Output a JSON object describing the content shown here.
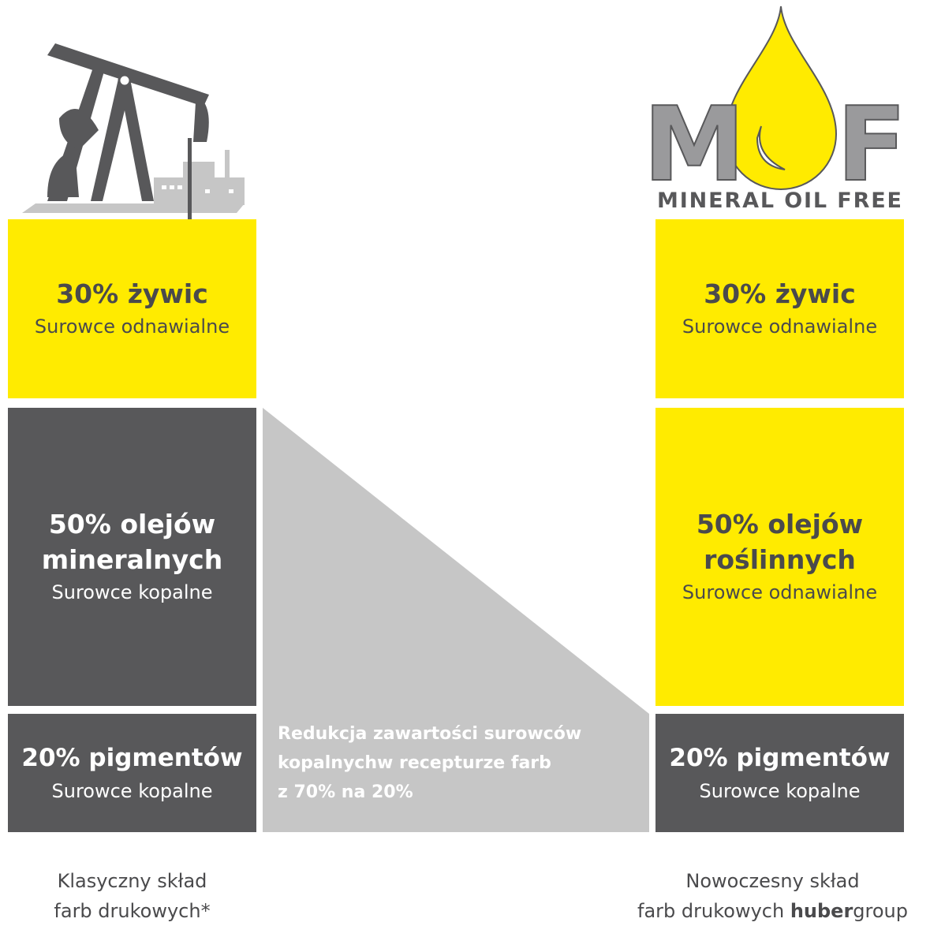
{
  "left": {
    "blocks": [
      {
        "title": [
          "30% żywic"
        ],
        "subtitle": "Surowce odnawialne"
      },
      {
        "title": [
          "50% olejów",
          "mineralnych"
        ],
        "subtitle": "Surowce kopalne"
      },
      {
        "title": [
          "20% pigmentów"
        ],
        "subtitle": "Surowce kopalne"
      }
    ],
    "caption": [
      "Klasyczny skład",
      "farb drukowych*"
    ]
  },
  "right": {
    "logo": {
      "letters": [
        "M",
        "F"
      ],
      "tagline": "MINERAL OIL FREE"
    },
    "blocks": [
      {
        "title": [
          "30% żywic"
        ],
        "subtitle": "Surowce odnawialne"
      },
      {
        "title": [
          "50% olejów",
          "roślinnych"
        ],
        "subtitle": "Surowce odnawialne"
      },
      {
        "title": [
          "20% pigmentów"
        ],
        "subtitle": "Surowce kopalne"
      }
    ],
    "caption": {
      "line1": "Nowoczesny skład",
      "line2": [
        "farb drukowych ",
        "huber",
        "group"
      ]
    }
  },
  "reduction": [
    "Redukcja zawartości surowców",
    "kopalnychw recepturze farb",
    "z 70% na 20%"
  ]
}
